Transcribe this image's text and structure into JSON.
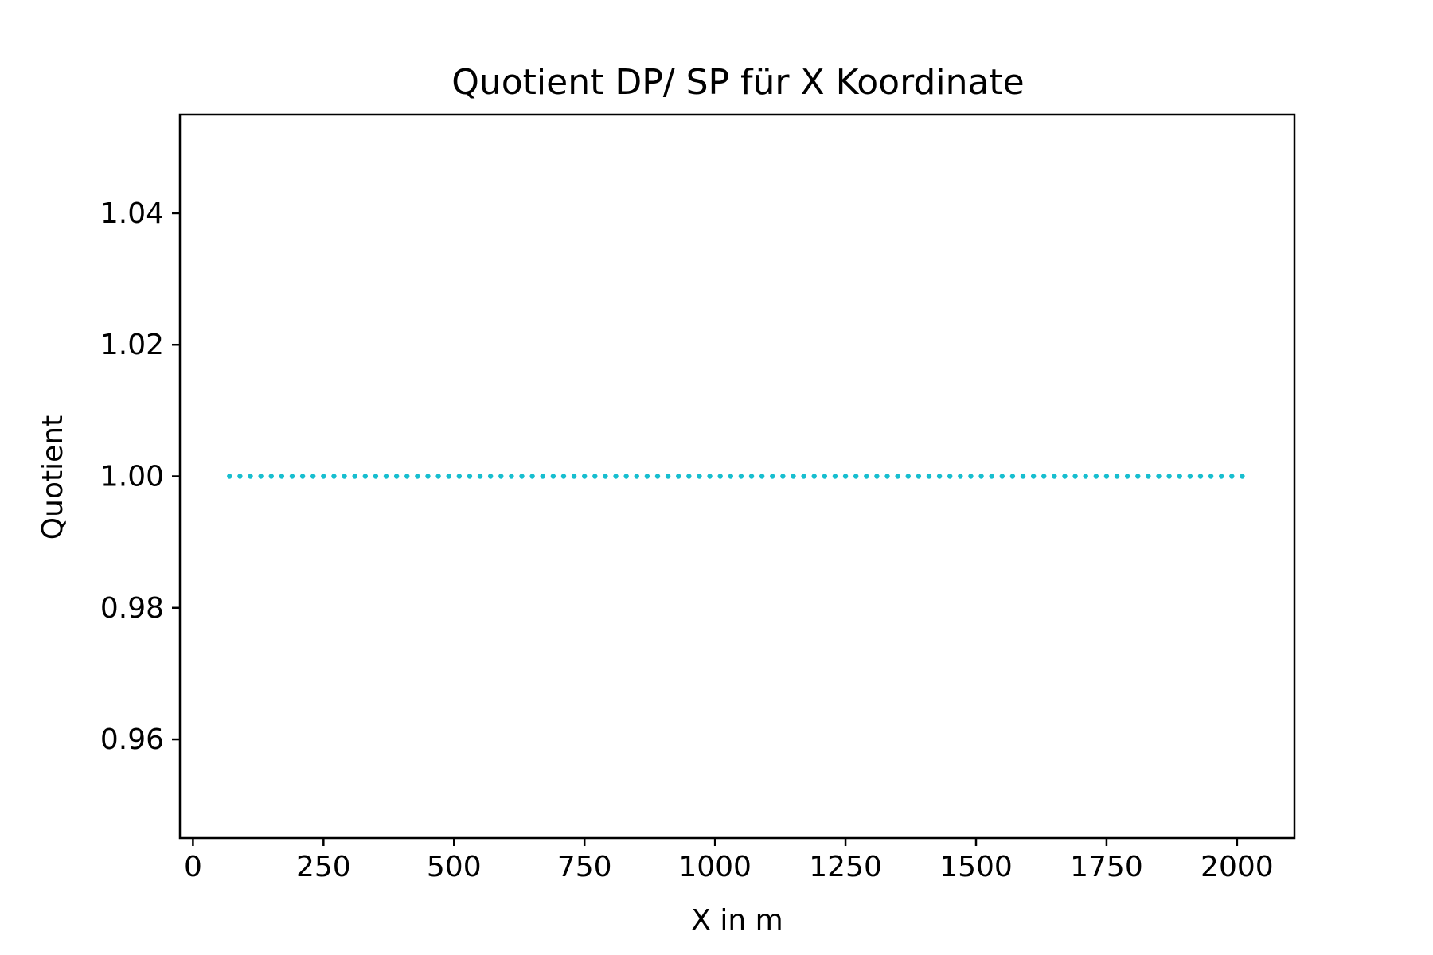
{
  "chart_data": {
    "type": "scatter",
    "title": "Quotient DP/ SP für X Koordinate",
    "xlabel": "X in m",
    "ylabel": "Quotient",
    "xlim": [
      -25,
      2110
    ],
    "ylim": [
      0.945,
      1.055
    ],
    "xticks": [
      0,
      250,
      500,
      750,
      1000,
      1250,
      1500,
      1750,
      2000
    ],
    "xtick_labels": [
      "0",
      "250",
      "500",
      "750",
      "1000",
      "1250",
      "1500",
      "1750",
      "2000"
    ],
    "yticks": [
      0.96,
      0.98,
      1.0,
      1.02,
      1.04
    ],
    "ytick_labels": [
      "0.96",
      "0.98",
      "1.00",
      "1.02",
      "1.04"
    ],
    "grid": false,
    "legend": "none",
    "series": [
      {
        "color": "#17becf",
        "style": "dotted",
        "x_start": 70,
        "x_end": 2010,
        "x_step": 20,
        "y": 1.0
      }
    ]
  }
}
